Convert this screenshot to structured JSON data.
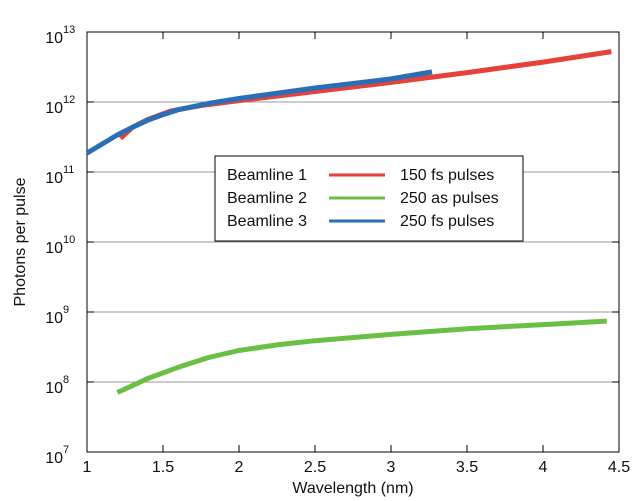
{
  "chart_data": {
    "type": "line",
    "title": "",
    "xlabel": "Wavelength (nm)",
    "ylabel": "Photons per pulse",
    "xlim": [
      1,
      4.5
    ],
    "ylim_log10": [
      7,
      13
    ],
    "y_scale": "log",
    "grid": "horizontal",
    "x_ticks": [
      "1",
      "1.5",
      "2",
      "2.5",
      "3",
      "3.5",
      "4",
      "4.5"
    ],
    "x_tick_values": [
      1,
      1.5,
      2,
      2.5,
      3,
      3.5,
      4,
      4.5
    ],
    "y_tick_exponents": [
      7,
      8,
      9,
      10,
      11,
      12,
      13
    ],
    "y_tick_base": "10",
    "legend_placement": "center",
    "series": [
      {
        "name": "Beamline 1",
        "description": "150 fs pulses",
        "color": "#e8413b",
        "x": [
          1.22,
          1.3,
          1.4,
          1.55,
          1.75,
          2.0,
          2.5,
          3.0,
          3.5,
          4.0,
          4.45
        ],
        "y_log10": [
          11.48,
          11.64,
          11.75,
          11.87,
          11.95,
          12.02,
          12.15,
          12.28,
          12.42,
          12.57,
          12.72
        ]
      },
      {
        "name": "Beamline 2",
        "description": "250 as pulses",
        "color": "#6cbf45",
        "x": [
          1.2,
          1.4,
          1.6,
          1.8,
          2.0,
          2.25,
          2.5,
          3.0,
          3.5,
          4.0,
          4.42
        ],
        "y_log10": [
          7.85,
          8.05,
          8.21,
          8.35,
          8.45,
          8.53,
          8.59,
          8.68,
          8.76,
          8.82,
          8.87
        ]
      },
      {
        "name": "Beamline 3",
        "description": "250 fs pulses",
        "color": "#2a6fb5",
        "x": [
          1.0,
          1.1,
          1.2,
          1.3,
          1.4,
          1.5,
          1.6,
          1.8,
          2.0,
          2.5,
          3.0,
          3.27
        ],
        "y_log10": [
          11.27,
          11.4,
          11.53,
          11.64,
          11.74,
          11.82,
          11.89,
          11.98,
          12.05,
          12.2,
          12.33,
          12.43
        ]
      }
    ]
  }
}
